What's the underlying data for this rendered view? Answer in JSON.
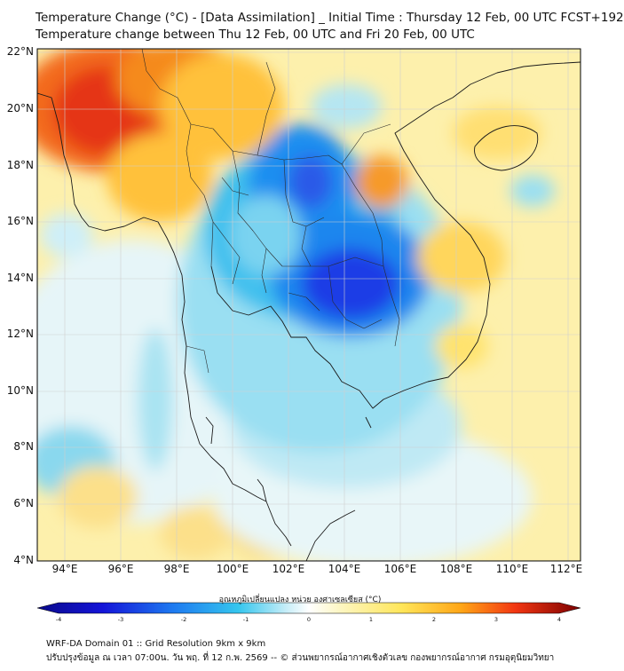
{
  "title": {
    "line1": "Temperature Change (°C) - [Data Assimilation] _ Initial Time : Thursday 12 Feb, 00 UTC FCST+192",
    "line2": "Temperature change between Thu 12 Feb, 00 UTC and Fri 20 Feb, 00 UTC"
  },
  "axes": {
    "y_labels": [
      "22°N",
      "20°N",
      "18°N",
      "16°N",
      "14°N",
      "12°N",
      "10°N",
      "8°N",
      "6°N",
      "4°N"
    ],
    "x_labels": [
      "94°E",
      "96°E",
      "98°E",
      "100°E",
      "102°E",
      "104°E",
      "106°E",
      "108°E",
      "110°E",
      "112°E"
    ],
    "lat_range": [
      4,
      22.3
    ],
    "lon_range": [
      93,
      112.4
    ]
  },
  "colorbar": {
    "title": "อุณหภูมิเปลี่ยนแปลง หน่วย องศาเซลเซียส (°C)",
    "ticks": [
      "-4",
      "-3",
      "-2",
      "-1",
      "0",
      "1",
      "2",
      "3",
      "4"
    ],
    "range": [
      -4,
      4
    ]
  },
  "footer": {
    "line1": "WRF-DA Domain 01 :: Grid Resolution 9km x 9km",
    "line2": "ปรับปรุงข้อมูล ณ เวลา 07:00น. วัน พฤ. ที่ 12 ก.พ. 2569 -- © ส่วนพยากรณ์อากาศเชิงตัวเลข กองพยากรณ์อากาศ กรมอุตุนิยมวิทยา"
  },
  "colors": {
    "frame": "#000000",
    "grid": "#cfcfcf"
  }
}
